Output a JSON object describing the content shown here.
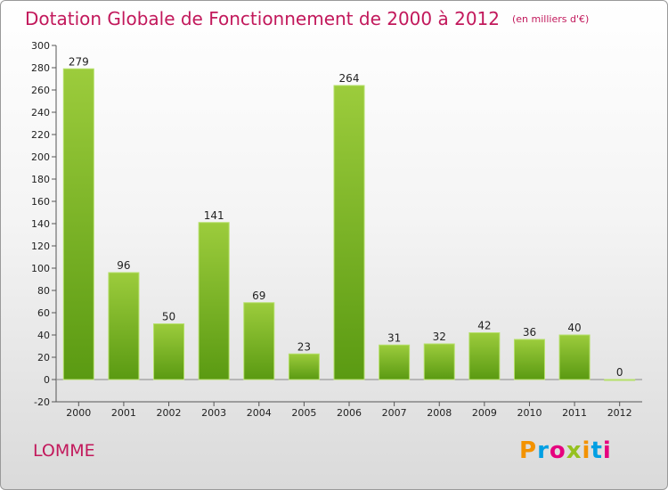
{
  "title": "Dotation Globale de Fonctionnement de 2000 à 2012",
  "units": "(en milliers d'€)",
  "place": "LOMME",
  "logo": {
    "text": "Proxiti",
    "colors": [
      "#f39200",
      "#009fe3",
      "#e6007e",
      "#95c11f",
      "#f39200",
      "#009fe3",
      "#e6007e"
    ]
  },
  "colors": {
    "bar_top": "#9ccc3c",
    "bar_bottom": "#5a9a12",
    "title": "#c2185b"
  },
  "chart_data": {
    "type": "bar",
    "title": "Dotation Globale de Fonctionnement de 2000 à 2012",
    "xlabel": "",
    "ylabel": "",
    "ylim": [
      -20,
      300
    ],
    "yticks": [
      -20,
      0,
      20,
      40,
      60,
      80,
      100,
      120,
      140,
      160,
      180,
      200,
      220,
      240,
      260,
      280,
      300
    ],
    "grid": false,
    "categories": [
      "2000",
      "2001",
      "2002",
      "2003",
      "2004",
      "2005",
      "2006",
      "2007",
      "2008",
      "2009",
      "2010",
      "2011",
      "2012"
    ],
    "values": [
      279,
      96,
      50,
      141,
      69,
      23,
      264,
      31,
      32,
      42,
      36,
      40,
      0
    ]
  }
}
